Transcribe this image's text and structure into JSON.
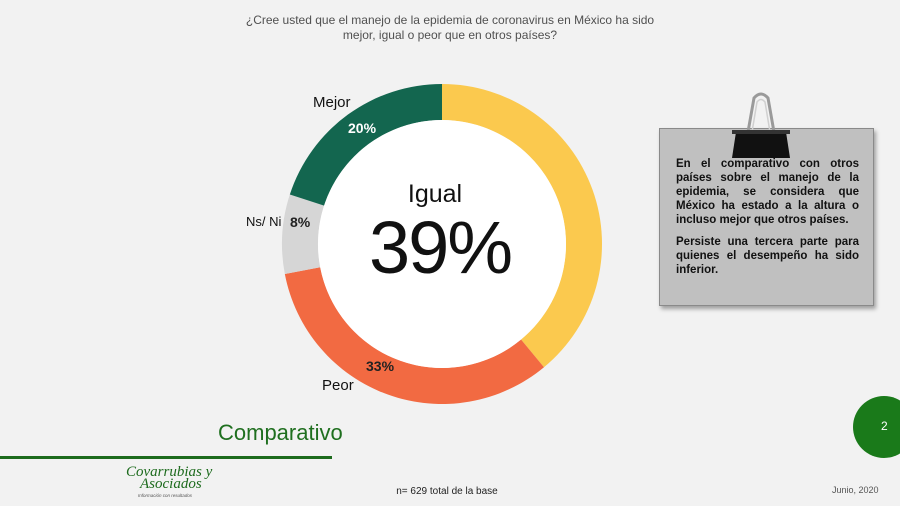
{
  "question": {
    "line1": "¿Cree usted que el manejo de la epidemia de coronavirus en México ha sido",
    "line2": "mejor, igual o peor que en otros países?"
  },
  "chart_data": {
    "type": "pie",
    "title": "¿Cree usted que el manejo de la epidemia de coronavirus en México ha sido mejor, igual o peor que en otros países?",
    "categories": [
      "Igual",
      "Peor",
      "Ns/ Ni",
      "Mejor"
    ],
    "values": [
      39,
      33,
      8,
      20
    ],
    "value_labels": [
      "39%",
      "33%",
      "8%",
      "20%"
    ],
    "colors": [
      "#fbc94e",
      "#f26a42",
      "#d6d6d6",
      "#13664f"
    ],
    "center_label": "Igual",
    "center_value": "39%"
  },
  "note": {
    "paragraph1": "En el comparativo con otros países sobre el manejo de la epidemia, se considera que México ha estado a la altura o incluso mejor que otros países.",
    "paragraph2": "Persiste una tercera parte para quienes el desempeño ha sido inferior."
  },
  "footer": {
    "section_title": "Comparativo",
    "logo_line1": "Covarrubias y",
    "logo_line2": "Asociados",
    "logo_tagline": "Información con resultados",
    "base_note": "n= 629 total de la base",
    "date": "Junio, 2020",
    "page_number": "2"
  },
  "colors": {
    "brand_green": "#1d6b1d",
    "note_bg": "#c0c0c0"
  }
}
